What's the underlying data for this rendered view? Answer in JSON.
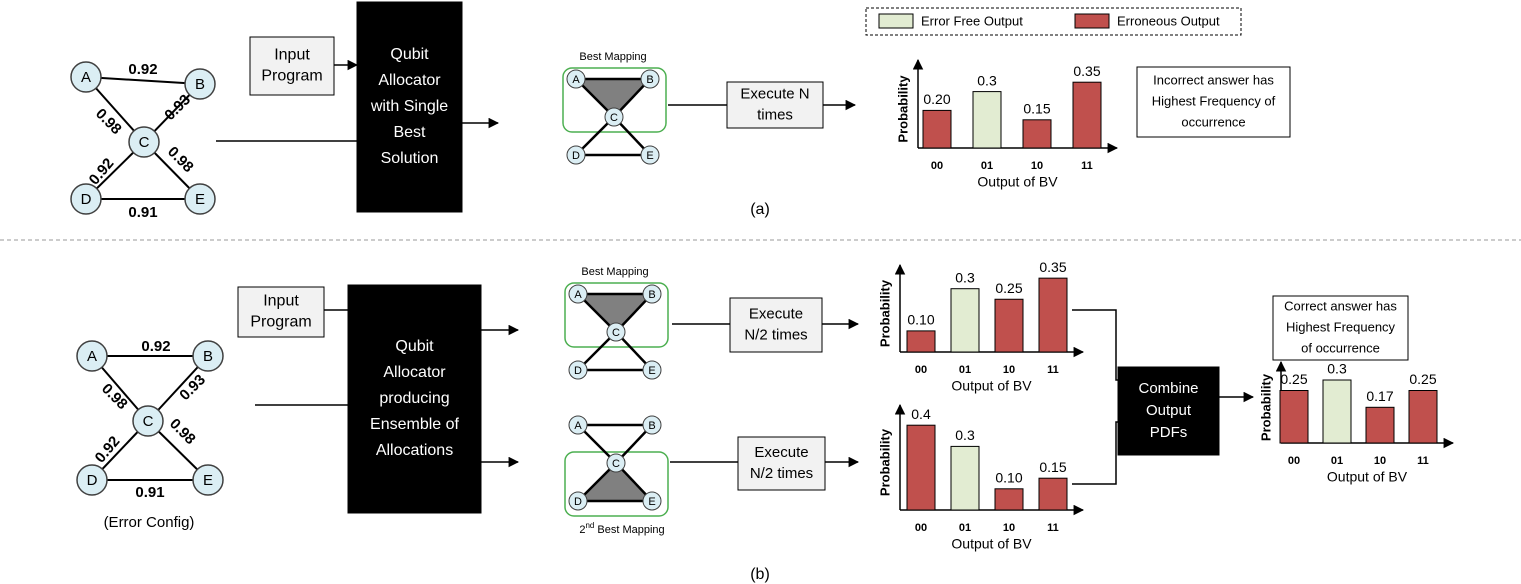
{
  "legend": {
    "items": [
      {
        "label": "Error Free Output",
        "color": "#e2ecd2"
      },
      {
        "label": "Erroneous Output",
        "color": "#c0504d"
      }
    ]
  },
  "panel_a": {
    "caption": "(a)",
    "graph": {
      "nodes": [
        "A",
        "B",
        "C",
        "D",
        "E"
      ],
      "edge_weights": [
        0.92,
        0.93,
        0.98,
        0.92,
        0.98,
        0.91
      ]
    },
    "input_box": [
      "Input",
      "Program"
    ],
    "allocator": [
      "Qubit",
      "Allocator",
      "with Single",
      "Best",
      "Solution"
    ],
    "mapping": {
      "label": [
        "Best Mapping"
      ],
      "nodes": [
        "A",
        "B",
        "C",
        "D",
        "E"
      ]
    },
    "execute": [
      "Execute N",
      "times"
    ],
    "chart": {
      "y_label": "Probability",
      "x_label": "Output of BV",
      "categories": [
        "00",
        "01",
        "10",
        "11"
      ],
      "values": [
        0.2,
        0.3,
        0.15,
        0.35
      ],
      "value_labels": [
        "0.20",
        "0.3",
        "0.15",
        "0.35"
      ],
      "colors": [
        "#c0504d",
        "#e2ecd2",
        "#c0504d",
        "#c0504d"
      ]
    },
    "note": [
      "Incorrect answer has",
      "Highest Frequency of",
      "occurrence"
    ]
  },
  "panel_b": {
    "caption": "(b)",
    "graph": {
      "nodes": [
        "A",
        "B",
        "C",
        "D",
        "E"
      ],
      "edge_weights": [
        0.92,
        0.93,
        0.98,
        0.92,
        0.98,
        0.91
      ]
    },
    "graph_label": "(Error Config)",
    "input_box": [
      "Input",
      "Program"
    ],
    "allocator": [
      "Qubit",
      "Allocator",
      "producing",
      "Ensemble of",
      "Allocations"
    ],
    "mappings": [
      {
        "label": [
          "Best Mapping"
        ],
        "nodes": [
          "A",
          "B",
          "C",
          "D",
          "E"
        ]
      },
      {
        "label": [
          "2",
          "nd",
          " Best Mapping"
        ],
        "nodes": [
          "A",
          "B",
          "C",
          "D",
          "E"
        ]
      }
    ],
    "execute": [
      [
        "Execute",
        "N/2 times"
      ],
      [
        "Execute",
        "N/2 times"
      ]
    ],
    "charts": [
      {
        "y_label": "Probability",
        "x_label": "Output of BV",
        "categories": [
          "00",
          "01",
          "10",
          "11"
        ],
        "values": [
          0.1,
          0.3,
          0.25,
          0.35
        ],
        "value_labels": [
          "0.10",
          "0.3",
          "0.25",
          "0.35"
        ],
        "colors": [
          "#c0504d",
          "#e2ecd2",
          "#c0504d",
          "#c0504d"
        ]
      },
      {
        "y_label": "Probability",
        "x_label": "Output of BV",
        "categories": [
          "00",
          "01",
          "10",
          "11"
        ],
        "values": [
          0.4,
          0.3,
          0.1,
          0.15
        ],
        "value_labels": [
          "0.4",
          "0.3",
          "0.10",
          "0.15"
        ],
        "colors": [
          "#c0504d",
          "#e2ecd2",
          "#c0504d",
          "#c0504d"
        ]
      }
    ],
    "combine": [
      "Combine",
      "Output",
      "PDFs"
    ],
    "combined_chart": {
      "y_label": "Probability",
      "x_label": "Output of BV",
      "categories": [
        "00",
        "01",
        "10",
        "11"
      ],
      "values": [
        0.25,
        0.3,
        0.17,
        0.25
      ],
      "value_labels": [
        "0.25",
        "0.3",
        "0.17",
        "0.25"
      ],
      "colors": [
        "#c0504d",
        "#e2ecd2",
        "#c0504d",
        "#c0504d"
      ]
    },
    "note": [
      "Correct answer has",
      "Highest Frequency",
      "of occurrence"
    ]
  }
}
